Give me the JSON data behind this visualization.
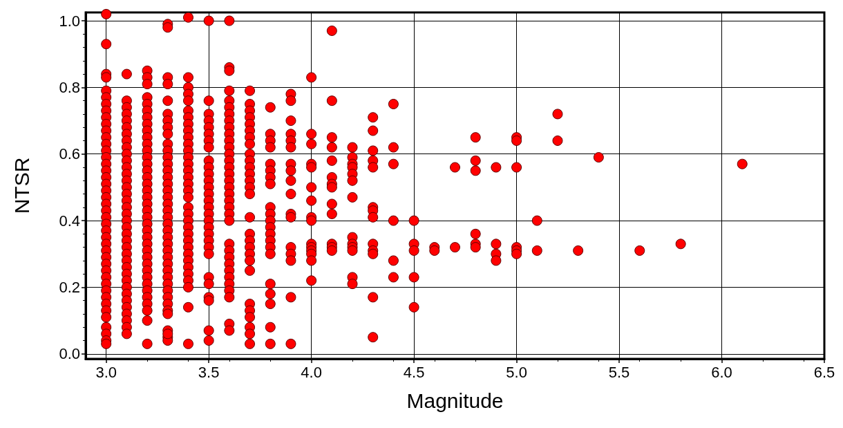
{
  "chart_data": {
    "type": "scatter",
    "xlabel": "Magnitude",
    "ylabel": "NTSR",
    "xlim": [
      2.9,
      6.5
    ],
    "ylim": [
      -0.015,
      1.025
    ],
    "xticks": [
      {
        "value": 3,
        "label": "3.0"
      },
      3.5,
      {
        "value": 4,
        "label": "4.0"
      },
      4.5,
      {
        "value": 5,
        "label": "5.0"
      },
      5.5,
      {
        "value": 6,
        "label": "6.0"
      },
      6.5
    ],
    "yticks": [
      {
        "value": 0,
        "label": "0.0"
      },
      0.2,
      0.4,
      0.6,
      0.8,
      {
        "value": 1,
        "label": "1.0"
      }
    ],
    "grid": true,
    "marker": "circle",
    "series": [
      {
        "color": "#ff0000",
        "x": [
          3,
          3,
          3,
          3,
          3,
          3,
          3,
          3,
          3,
          3,
          3,
          3,
          3,
          3,
          3,
          3,
          3,
          3,
          3,
          3,
          3,
          3,
          3,
          3,
          3,
          3,
          3,
          3,
          3,
          3,
          3,
          3,
          3,
          3,
          3,
          3,
          3,
          3,
          3,
          3,
          3,
          3,
          3,
          3.1,
          3.1,
          3.1,
          3.1,
          3.1,
          3.1,
          3.1,
          3.1,
          3.1,
          3.1,
          3.1,
          3.1,
          3.1,
          3.1,
          3.1,
          3.1,
          3.1,
          3.1,
          3.1,
          3.1,
          3.1,
          3.1,
          3.1,
          3.1,
          3.1,
          3.1,
          3.1,
          3.1,
          3.1,
          3.1,
          3.1,
          3.1,
          3.1,
          3.1,
          3.1,
          3.1,
          3.1,
          3.2,
          3.2,
          3.2,
          3.2,
          3.2,
          3.2,
          3.2,
          3.2,
          3.2,
          3.2,
          3.2,
          3.2,
          3.2,
          3.2,
          3.2,
          3.2,
          3.2,
          3.2,
          3.2,
          3.2,
          3.2,
          3.2,
          3.2,
          3.2,
          3.2,
          3.2,
          3.2,
          3.2,
          3.2,
          3.2,
          3.2,
          3.2,
          3.2,
          3.2,
          3.2,
          3.2,
          3.2,
          3.2,
          3.3,
          3.3,
          3.3,
          3.3,
          3.3,
          3.3,
          3.3,
          3.3,
          3.3,
          3.3,
          3.3,
          3.3,
          3.3,
          3.3,
          3.3,
          3.3,
          3.3,
          3.3,
          3.3,
          3.3,
          3.3,
          3.3,
          3.3,
          3.3,
          3.3,
          3.3,
          3.3,
          3.3,
          3.3,
          3.3,
          3.3,
          3.3,
          3.3,
          3.3,
          3.3,
          3.3,
          3.3,
          3.3,
          3.3,
          3.3,
          3.4,
          3.4,
          3.4,
          3.4,
          3.4,
          3.4,
          3.4,
          3.4,
          3.4,
          3.4,
          3.4,
          3.4,
          3.4,
          3.4,
          3.4,
          3.4,
          3.4,
          3.4,
          3.4,
          3.4,
          3.4,
          3.4,
          3.4,
          3.4,
          3.4,
          3.4,
          3.4,
          3.4,
          3.4,
          3.4,
          3.4,
          3.4,
          3.4,
          3.4,
          3.5,
          3.5,
          3.5,
          3.5,
          3.5,
          3.5,
          3.5,
          3.5,
          3.5,
          3.5,
          3.5,
          3.5,
          3.5,
          3.5,
          3.5,
          3.5,
          3.5,
          3.5,
          3.5,
          3.5,
          3.5,
          3.5,
          3.5,
          3.5,
          3.5,
          3.5,
          3.5,
          3.5,
          3.5,
          3.6,
          3.6,
          3.6,
          3.6,
          3.6,
          3.6,
          3.6,
          3.6,
          3.6,
          3.6,
          3.6,
          3.6,
          3.6,
          3.6,
          3.6,
          3.6,
          3.6,
          3.6,
          3.6,
          3.6,
          3.6,
          3.6,
          3.6,
          3.6,
          3.6,
          3.6,
          3.6,
          3.6,
          3.6,
          3.6,
          3.6,
          3.6,
          3.6,
          3.6,
          3.7,
          3.7,
          3.7,
          3.7,
          3.7,
          3.7,
          3.7,
          3.7,
          3.7,
          3.7,
          3.7,
          3.7,
          3.7,
          3.7,
          3.7,
          3.7,
          3.7,
          3.7,
          3.7,
          3.7,
          3.7,
          3.7,
          3.7,
          3.7,
          3.7,
          3.7,
          3.7,
          3.7,
          3.8,
          3.8,
          3.8,
          3.8,
          3.8,
          3.8,
          3.8,
          3.8,
          3.8,
          3.8,
          3.8,
          3.8,
          3.8,
          3.8,
          3.8,
          3.8,
          3.8,
          3.8,
          3.8,
          3.8,
          3.8,
          3.9,
          3.9,
          3.9,
          3.9,
          3.9,
          3.9,
          3.9,
          3.9,
          3.9,
          3.9,
          3.9,
          3.9,
          3.9,
          3.9,
          3.9,
          3.9,
          3.9,
          4,
          4,
          4,
          4,
          4,
          4,
          4,
          4,
          4,
          4,
          4,
          4,
          4,
          4,
          4,
          4.1,
          4.1,
          4.1,
          4.1,
          4.1,
          4.1,
          4.1,
          4.1,
          4.1,
          4.1,
          4.1,
          4.1,
          4.1,
          4.2,
          4.2,
          4.2,
          4.2,
          4.2,
          4.2,
          4.2,
          4.2,
          4.2,
          4.2,
          4.2,
          4.2,
          4.2,
          4.3,
          4.3,
          4.3,
          4.3,
          4.3,
          4.3,
          4.3,
          4.3,
          4.3,
          4.3,
          4.3,
          4.3,
          4.3,
          4.4,
          4.4,
          4.4,
          4.4,
          4.4,
          4.4,
          4.5,
          4.5,
          4.5,
          4.5,
          4.5,
          4.6,
          4.6,
          4.7,
          4.7,
          4.8,
          4.8,
          4.8,
          4.8,
          4.8,
          4.8,
          4.9,
          4.9,
          4.9,
          4.9,
          5,
          5,
          5,
          5,
          5,
          5,
          5.1,
          5.1,
          5.2,
          5.2,
          5.3,
          5.4,
          5.6,
          5.8,
          6.1
        ],
        "values": [
          1.02,
          0.93,
          0.84,
          0.83,
          0.79,
          0.77,
          0.75,
          0.73,
          0.71,
          0.69,
          0.67,
          0.65,
          0.63,
          0.61,
          0.59,
          0.57,
          0.55,
          0.53,
          0.51,
          0.49,
          0.47,
          0.45,
          0.43,
          0.41,
          0.39,
          0.37,
          0.35,
          0.33,
          0.31,
          0.29,
          0.27,
          0.25,
          0.23,
          0.21,
          0.19,
          0.17,
          0.15,
          0.13,
          0.11,
          0.08,
          0.06,
          0.04,
          0.03,
          0.84,
          0.76,
          0.74,
          0.72,
          0.7,
          0.68,
          0.66,
          0.64,
          0.62,
          0.6,
          0.58,
          0.56,
          0.54,
          0.52,
          0.5,
          0.48,
          0.46,
          0.44,
          0.42,
          0.4,
          0.38,
          0.36,
          0.34,
          0.32,
          0.3,
          0.28,
          0.26,
          0.24,
          0.22,
          0.2,
          0.18,
          0.16,
          0.14,
          0.12,
          0.1,
          0.08,
          0.06,
          0.85,
          0.83,
          0.81,
          0.77,
          0.75,
          0.73,
          0.71,
          0.69,
          0.67,
          0.65,
          0.63,
          0.61,
          0.59,
          0.57,
          0.55,
          0.53,
          0.51,
          0.49,
          0.47,
          0.45,
          0.43,
          0.41,
          0.39,
          0.37,
          0.35,
          0.33,
          0.31,
          0.29,
          0.27,
          0.25,
          0.23,
          0.21,
          0.19,
          0.17,
          0.15,
          0.13,
          0.1,
          0.03,
          0.99,
          0.98,
          0.83,
          0.81,
          0.76,
          0.72,
          0.7,
          0.68,
          0.66,
          0.63,
          0.61,
          0.59,
          0.57,
          0.55,
          0.53,
          0.51,
          0.49,
          0.47,
          0.45,
          0.43,
          0.41,
          0.39,
          0.37,
          0.35,
          0.33,
          0.31,
          0.29,
          0.27,
          0.25,
          0.23,
          0.21,
          0.19,
          0.17,
          0.15,
          0.13,
          0.12,
          0.07,
          0.05,
          0.04,
          0.06,
          1.01,
          0.83,
          0.8,
          0.78,
          0.76,
          0.73,
          0.71,
          0.69,
          0.67,
          0.65,
          0.63,
          0.61,
          0.59,
          0.57,
          0.55,
          0.53,
          0.51,
          0.49,
          0.47,
          0.44,
          0.42,
          0.4,
          0.38,
          0.36,
          0.34,
          0.32,
          0.3,
          0.28,
          0.26,
          0.24,
          0.22,
          0.2,
          0.14,
          0.03,
          1.0,
          0.76,
          0.72,
          0.7,
          0.68,
          0.66,
          0.64,
          0.62,
          0.58,
          0.56,
          0.54,
          0.52,
          0.5,
          0.48,
          0.46,
          0.44,
          0.42,
          0.4,
          0.38,
          0.36,
          0.34,
          0.32,
          0.3,
          0.23,
          0.21,
          0.17,
          0.16,
          0.07,
          0.04,
          1.0,
          0.86,
          0.85,
          0.79,
          0.76,
          0.74,
          0.72,
          0.7,
          0.68,
          0.66,
          0.64,
          0.62,
          0.6,
          0.58,
          0.56,
          0.54,
          0.52,
          0.5,
          0.48,
          0.46,
          0.44,
          0.42,
          0.4,
          0.33,
          0.31,
          0.29,
          0.27,
          0.25,
          0.23,
          0.21,
          0.19,
          0.17,
          0.09,
          0.07,
          0.79,
          0.75,
          0.73,
          0.71,
          0.69,
          0.67,
          0.65,
          0.63,
          0.6,
          0.58,
          0.56,
          0.54,
          0.52,
          0.5,
          0.48,
          0.41,
          0.36,
          0.34,
          0.32,
          0.3,
          0.28,
          0.25,
          0.15,
          0.13,
          0.11,
          0.08,
          0.06,
          0.03,
          0.74,
          0.66,
          0.64,
          0.62,
          0.57,
          0.55,
          0.53,
          0.51,
          0.44,
          0.42,
          0.4,
          0.38,
          0.36,
          0.34,
          0.32,
          0.3,
          0.21,
          0.18,
          0.15,
          0.08,
          0.03,
          0.78,
          0.76,
          0.7,
          0.66,
          0.64,
          0.62,
          0.57,
          0.55,
          0.52,
          0.48,
          0.42,
          0.41,
          0.32,
          0.3,
          0.28,
          0.17,
          0.03,
          0.83,
          0.66,
          0.63,
          0.57,
          0.56,
          0.5,
          0.46,
          0.41,
          0.4,
          0.33,
          0.32,
          0.31,
          0.3,
          0.28,
          0.22,
          0.97,
          0.76,
          0.65,
          0.62,
          0.58,
          0.53,
          0.51,
          0.5,
          0.45,
          0.42,
          0.33,
          0.32,
          0.31,
          0.62,
          0.59,
          0.57,
          0.56,
          0.54,
          0.52,
          0.47,
          0.35,
          0.33,
          0.32,
          0.31,
          0.23,
          0.21,
          0.71,
          0.67,
          0.61,
          0.58,
          0.56,
          0.44,
          0.43,
          0.41,
          0.33,
          0.31,
          0.3,
          0.17,
          0.05,
          0.75,
          0.62,
          0.57,
          0.4,
          0.28,
          0.23,
          0.4,
          0.33,
          0.31,
          0.23,
          0.14,
          0.32,
          0.31,
          0.56,
          0.32,
          0.65,
          0.58,
          0.55,
          0.36,
          0.33,
          0.32,
          0.56,
          0.33,
          0.3,
          0.28,
          0.65,
          0.64,
          0.56,
          0.32,
          0.31,
          0.3,
          0.4,
          0.31,
          0.72,
          0.64,
          0.31,
          0.59,
          0.31,
          0.33,
          0.57
        ]
      }
    ]
  }
}
